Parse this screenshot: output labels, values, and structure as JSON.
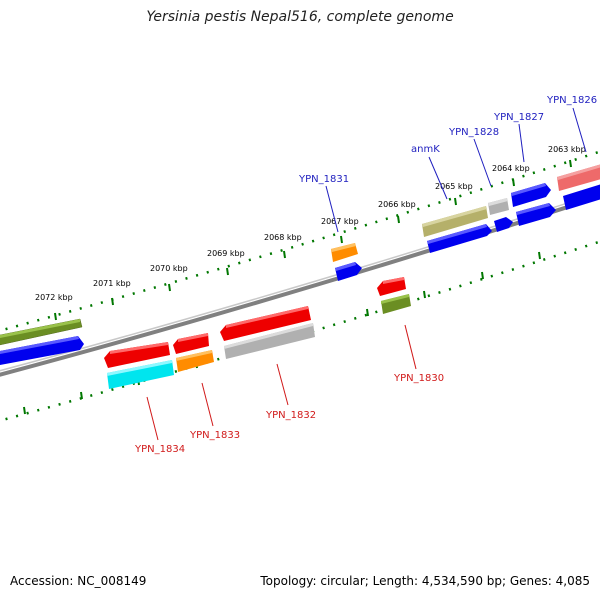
{
  "header": {
    "title": "Yersinia pestis Nepal516, complete genome"
  },
  "footer": {
    "accession": "Accession: NC_008149",
    "stats": "Topology: circular; Length: 4,534,590 bp; Genes: 4,085"
  },
  "map": {
    "kbp_labels": [
      "2072 kbp",
      "2071 kbp",
      "2070 kbp",
      "2069 kbp",
      "2068 kbp",
      "2067 kbp",
      "2066 kbp",
      "2065 kbp",
      "2064 kbp",
      "2063 kbp"
    ],
    "forward_gene_labels": [
      "YPN_1831",
      "anmK",
      "YPN_1828",
      "YPN_1827",
      "YPN_1826"
    ],
    "reverse_gene_labels": [
      "YPN_1834",
      "YPN_1833",
      "YPN_1832",
      "YPN_1830"
    ],
    "colors": {
      "blue": "#0000ee",
      "red": "#ee0000",
      "olive": "#6b8e23",
      "khaki": "#b5b06a",
      "orange": "#ff8c00",
      "cyan": "#00e5ee",
      "grey": "#b0b0b0",
      "pink": "#ee6a6a",
      "tick": "#007700",
      "backbone": "#808080"
    }
  }
}
